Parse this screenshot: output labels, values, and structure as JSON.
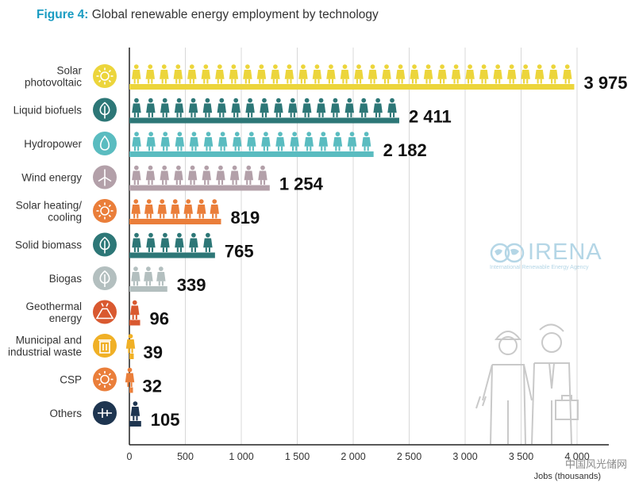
{
  "figure": {
    "label": "Figure 4:",
    "text": "Global renewable energy employment by technology"
  },
  "brand": {
    "name": "IRENA",
    "tagline": "International Renewable Energy Agency"
  },
  "watermark": "中国风光储网",
  "colors": {
    "solar": "#ecd53b",
    "teal": "#2d7777",
    "aqua": "#5abcc0",
    "mauve": "#b3a0a9",
    "orange": "#ea7e3a",
    "grey": "#b3bfbf",
    "red": "#d95930",
    "amber": "#f0b026",
    "navy": "#1e3550",
    "grid": "#d8d8d8",
    "text": "#333333",
    "title_blue": "#1a9cc2"
  },
  "chart_data": {
    "type": "bar",
    "orientation": "horizontal",
    "title": "Global renewable energy employment by technology",
    "xlabel": "Jobs (thousands)",
    "xlim": [
      0,
      4000
    ],
    "xticks": [
      0,
      500,
      1000,
      1500,
      2000,
      2500,
      3000,
      3500,
      4000
    ],
    "xtick_labels": [
      "0",
      "500",
      "1 000",
      "1 500",
      "2 000",
      "2 500",
      "3 000",
      "3 500",
      "4 000"
    ],
    "grid": true,
    "categories": [
      {
        "label": "Solar photovoltaic",
        "lines": [
          "Solar",
          "photovoltaic"
        ],
        "value": 3975,
        "value_label": "3 975",
        "color": "#ecd53b",
        "icon": "sun-icon"
      },
      {
        "label": "Liquid biofuels",
        "lines": [
          "Liquid biofuels"
        ],
        "value": 2411,
        "value_label": "2 411",
        "color": "#2d7777",
        "icon": "leaf-icon"
      },
      {
        "label": "Hydropower",
        "lines": [
          "Hydropower"
        ],
        "value": 2182,
        "value_label": "2 182",
        "color": "#5abcc0",
        "icon": "water-drop-icon"
      },
      {
        "label": "Wind energy",
        "lines": [
          "Wind energy"
        ],
        "value": 1254,
        "value_label": "1 254",
        "color": "#b3a0a9",
        "icon": "wind-turbine-icon"
      },
      {
        "label": "Solar heating/ cooling",
        "lines": [
          "Solar heating/",
          "cooling"
        ],
        "value": 819,
        "value_label": "819",
        "color": "#ea7e3a",
        "icon": "sun-icon"
      },
      {
        "label": "Solid biomass",
        "lines": [
          "Solid biomass"
        ],
        "value": 765,
        "value_label": "765",
        "color": "#2d7777",
        "icon": "leaf-icon"
      },
      {
        "label": "Biogas",
        "lines": [
          "Biogas"
        ],
        "value": 339,
        "value_label": "339",
        "color": "#b3bfbf",
        "icon": "leaf-icon"
      },
      {
        "label": "Geothermal energy",
        "lines": [
          "Geothermal",
          "energy"
        ],
        "value": 96,
        "value_label": "96",
        "color": "#d95930",
        "icon": "volcano-icon"
      },
      {
        "label": "Municipal and industrial waste",
        "lines": [
          "Municipal and",
          "industrial waste"
        ],
        "value": 39,
        "value_label": "39",
        "color": "#f0b026",
        "icon": "trash-bin-icon"
      },
      {
        "label": "CSP",
        "lines": [
          "CSP"
        ],
        "value": 32,
        "value_label": "32",
        "color": "#ea7e3a",
        "icon": "sun-icon"
      },
      {
        "label": "Others",
        "lines": [
          "Others"
        ],
        "value": 105,
        "value_label": "105",
        "color": "#1e3550",
        "icon": "plug-icon"
      }
    ]
  }
}
